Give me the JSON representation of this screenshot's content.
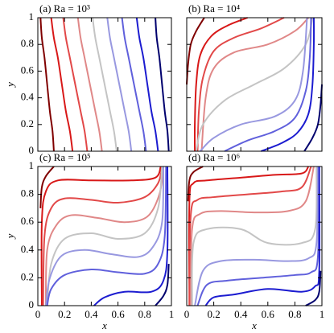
{
  "chart_data": [
    {
      "type": "line",
      "title": "(a) Ra = 10³",
      "ylabel": "y",
      "xlim": [
        0,
        1
      ],
      "ylim": [
        0,
        1
      ],
      "xticks": [
        0,
        0.2,
        0.4,
        0.6,
        0.8,
        1
      ],
      "yticks": [
        0,
        0.2,
        0.4,
        0.6,
        0.8,
        1
      ],
      "xticklabels": false,
      "yticklabels": true,
      "series": [
        {
          "color": "#800000",
          "x": [
            0.12,
            0.11,
            0.09,
            0.07,
            0.05,
            0.03,
            0.02
          ],
          "values": [
            0,
            0.15,
            0.3,
            0.5,
            0.7,
            0.85,
            1
          ]
        },
        {
          "color": "#d81818",
          "x": [
            0.26,
            0.24,
            0.21,
            0.18,
            0.15,
            0.12,
            0.1
          ],
          "values": [
            0,
            0.15,
            0.3,
            0.5,
            0.7,
            0.85,
            1
          ]
        },
        {
          "color": "#e24848",
          "x": [
            0.37,
            0.35,
            0.32,
            0.28,
            0.24,
            0.21,
            0.19
          ],
          "values": [
            0,
            0.15,
            0.3,
            0.5,
            0.7,
            0.85,
            1
          ]
        },
        {
          "color": "#e08888",
          "x": [
            0.48,
            0.46,
            0.43,
            0.39,
            0.35,
            0.32,
            0.3
          ],
          "values": [
            0,
            0.15,
            0.3,
            0.5,
            0.7,
            0.85,
            1
          ]
        },
        {
          "color": "#c4c4c4",
          "x": [
            0.59,
            0.57,
            0.54,
            0.5,
            0.46,
            0.43,
            0.41
          ],
          "values": [
            0,
            0.15,
            0.3,
            0.5,
            0.7,
            0.85,
            1
          ]
        },
        {
          "color": "#9898e0",
          "x": [
            0.7,
            0.68,
            0.65,
            0.61,
            0.57,
            0.54,
            0.52
          ],
          "values": [
            0,
            0.15,
            0.3,
            0.5,
            0.7,
            0.85,
            1
          ]
        },
        {
          "color": "#6060dc",
          "x": [
            0.81,
            0.79,
            0.76,
            0.72,
            0.68,
            0.65,
            0.63
          ],
          "values": [
            0,
            0.15,
            0.3,
            0.5,
            0.7,
            0.85,
            1
          ]
        },
        {
          "color": "#1c1cd0",
          "x": [
            0.9,
            0.88,
            0.85,
            0.82,
            0.79,
            0.76,
            0.74
          ],
          "values": [
            0,
            0.15,
            0.3,
            0.5,
            0.7,
            0.85,
            1
          ]
        },
        {
          "color": "#00006e",
          "x": [
            0.98,
            0.97,
            0.95,
            0.93,
            0.91,
            0.89,
            0.88
          ],
          "values": [
            0,
            0.15,
            0.3,
            0.5,
            0.7,
            0.85,
            1
          ]
        }
      ]
    },
    {
      "type": "line",
      "title": "(b) Ra = 10⁴",
      "xlim": [
        0,
        1
      ],
      "ylim": [
        0,
        1
      ],
      "xticks": [
        0,
        0.2,
        0.4,
        0.6,
        0.8,
        1
      ],
      "yticks": [
        0,
        0.2,
        0.4,
        0.6,
        0.8,
        1
      ],
      "xticklabels": false,
      "yticklabels": false,
      "series": [
        {
          "color": "#800000",
          "x": [
            0.13,
            0.07,
            0.03,
            0.01,
            0
          ],
          "values": [
            1,
            0.9,
            0.8,
            0.65,
            0.5
          ]
        },
        {
          "color": "#d81818",
          "x": [
            0.45,
            0.3,
            0.18,
            0.1,
            0.07,
            0.06,
            0.06
          ],
          "values": [
            1,
            0.94,
            0.86,
            0.72,
            0.5,
            0.2,
            0
          ]
        },
        {
          "color": "#e24848",
          "x": [
            0.72,
            0.55,
            0.35,
            0.2,
            0.12,
            0.09,
            0.08
          ],
          "values": [
            1,
            0.92,
            0.85,
            0.75,
            0.55,
            0.3,
            0
          ]
        },
        {
          "color": "#e08888",
          "x": [
            0.9,
            0.8,
            0.6,
            0.35,
            0.2,
            0.14,
            0.11
          ],
          "values": [
            1,
            0.9,
            0.8,
            0.74,
            0.62,
            0.4,
            0
          ]
        },
        {
          "color": "#c4c4c4",
          "x": [
            0.93,
            0.88,
            0.72,
            0.5,
            0.28,
            0.12,
            0.07
          ],
          "values": [
            1,
            0.8,
            0.62,
            0.5,
            0.38,
            0.2,
            0
          ]
        },
        {
          "color": "#9898e0",
          "x": [
            0.89,
            0.86,
            0.8,
            0.65,
            0.4,
            0.2,
            0.1
          ],
          "values": [
            1,
            0.6,
            0.38,
            0.26,
            0.2,
            0.1,
            0
          ]
        },
        {
          "color": "#6060dc",
          "x": [
            0.92,
            0.91,
            0.88,
            0.8,
            0.65,
            0.45,
            0.28
          ],
          "values": [
            1,
            0.7,
            0.45,
            0.25,
            0.15,
            0.08,
            0
          ]
        },
        {
          "color": "#1c1cd0",
          "x": [
            0.94,
            0.94,
            0.93,
            0.9,
            0.82,
            0.7,
            0.55
          ],
          "values": [
            1,
            0.8,
            0.5,
            0.28,
            0.14,
            0.06,
            0
          ]
        },
        {
          "color": "#00006e",
          "x": [
            1,
            0.99,
            0.97,
            0.93,
            0.87
          ],
          "values": [
            0.5,
            0.35,
            0.2,
            0.1,
            0
          ]
        }
      ]
    },
    {
      "type": "line",
      "title": "(c) Ra = 10⁵",
      "xlabel": "x",
      "ylabel": "y",
      "xlim": [
        0,
        1
      ],
      "ylim": [
        0,
        1
      ],
      "xticks": [
        0,
        0.2,
        0.4,
        0.6,
        0.8,
        1
      ],
      "yticks": [
        0,
        0.2,
        0.4,
        0.6,
        0.8,
        1
      ],
      "xticklabels": true,
      "yticklabels": true,
      "series": [
        {
          "color": "#800000",
          "x": [
            0.02,
            0.03,
            0.06,
            0.12
          ],
          "values": [
            0.7,
            0.85,
            0.93,
            1
          ]
        },
        {
          "color": "#d81818",
          "x": [
            0.03,
            0.03,
            0.06,
            0.15,
            0.4,
            0.7,
            0.88,
            0.92
          ],
          "values": [
            0,
            0.6,
            0.82,
            0.9,
            0.9,
            0.9,
            0.92,
            1
          ]
        },
        {
          "color": "#e24848",
          "x": [
            0.04,
            0.05,
            0.1,
            0.2,
            0.4,
            0.6,
            0.8,
            0.9,
            0.93
          ],
          "values": [
            0,
            0.5,
            0.7,
            0.77,
            0.76,
            0.74,
            0.78,
            0.88,
            1
          ]
        },
        {
          "color": "#e08888",
          "x": [
            0.06,
            0.07,
            0.14,
            0.25,
            0.45,
            0.65,
            0.82,
            0.91,
            0.94
          ],
          "values": [
            0,
            0.4,
            0.58,
            0.65,
            0.63,
            0.6,
            0.64,
            0.8,
            1
          ]
        },
        {
          "color": "#c4c4c4",
          "x": [
            0.07,
            0.1,
            0.2,
            0.4,
            0.6,
            0.8,
            0.9,
            0.93
          ],
          "values": [
            0,
            0.3,
            0.48,
            0.52,
            0.48,
            0.52,
            0.7,
            1
          ]
        },
        {
          "color": "#9898e0",
          "x": [
            0.06,
            0.09,
            0.18,
            0.35,
            0.55,
            0.75,
            0.86,
            0.93,
            0.94
          ],
          "values": [
            0,
            0.2,
            0.36,
            0.4,
            0.37,
            0.35,
            0.42,
            0.6,
            1
          ]
        },
        {
          "color": "#6060dc",
          "x": [
            0.07,
            0.1,
            0.2,
            0.4,
            0.6,
            0.8,
            0.9,
            0.95,
            0.96
          ],
          "values": [
            0,
            0.12,
            0.22,
            0.26,
            0.24,
            0.23,
            0.3,
            0.5,
            1
          ]
        },
        {
          "color": "#1c1cd0",
          "x": [
            0.42,
            0.5,
            0.65,
            0.85,
            0.94,
            0.97,
            0.97
          ],
          "values": [
            0,
            0.06,
            0.1,
            0.1,
            0.18,
            0.4,
            1
          ]
        },
        {
          "color": "#00006e",
          "x": [
            0.88,
            0.94,
            0.97,
            0.98
          ],
          "values": [
            0,
            0.07,
            0.15,
            0.3
          ]
        }
      ]
    },
    {
      "type": "line",
      "title": "(d) Ra = 10⁶",
      "xlabel": "x",
      "xlim": [
        0,
        1
      ],
      "ylim": [
        0,
        1
      ],
      "xticks": [
        0,
        0.2,
        0.4,
        0.6,
        0.8,
        1
      ],
      "yticks": [
        0,
        0.2,
        0.4,
        0.6,
        0.8,
        1
      ],
      "xticklabels": true,
      "yticklabels": false,
      "series": [
        {
          "color": "#800000",
          "x": [
            0.01,
            0.02,
            0.05,
            0.12
          ],
          "values": [
            0.75,
            0.9,
            0.96,
            1
          ]
        },
        {
          "color": "#d81818",
          "x": [
            0.02,
            0.02,
            0.05,
            0.15,
            0.4,
            0.65,
            0.85,
            0.9
          ],
          "values": [
            0,
            0.75,
            0.88,
            0.9,
            0.92,
            0.94,
            0.95,
            1
          ]
        },
        {
          "color": "#e24848",
          "x": [
            0.02,
            0.03,
            0.08,
            0.2,
            0.45,
            0.7,
            0.85,
            0.92
          ],
          "values": [
            0,
            0.65,
            0.76,
            0.78,
            0.8,
            0.82,
            0.85,
            1
          ]
        },
        {
          "color": "#e08888",
          "x": [
            0.03,
            0.04,
            0.1,
            0.25,
            0.5,
            0.75,
            0.88,
            0.94
          ],
          "values": [
            0,
            0.55,
            0.66,
            0.68,
            0.67,
            0.68,
            0.75,
            1
          ]
        },
        {
          "color": "#c4c4c4",
          "x": [
            0.04,
            0.05,
            0.15,
            0.4,
            0.6,
            0.85,
            0.95,
            0.96
          ],
          "values": [
            0,
            0.45,
            0.55,
            0.55,
            0.45,
            0.45,
            0.55,
            1
          ]
        },
        {
          "color": "#9898e0",
          "x": [
            0.06,
            0.12,
            0.25,
            0.5,
            0.75,
            0.9,
            0.96,
            0.97
          ],
          "values": [
            0,
            0.25,
            0.32,
            0.33,
            0.32,
            0.34,
            0.45,
            1
          ]
        },
        {
          "color": "#6060dc",
          "x": [
            0.08,
            0.15,
            0.3,
            0.55,
            0.8,
            0.92,
            0.97,
            0.98
          ],
          "values": [
            0,
            0.15,
            0.18,
            0.2,
            0.22,
            0.24,
            0.35,
            1
          ]
        },
        {
          "color": "#1c1cd0",
          "x": [
            0.14,
            0.2,
            0.35,
            0.6,
            0.85,
            0.95,
            0.98,
            0.98
          ],
          "values": [
            0,
            0.06,
            0.08,
            0.12,
            0.1,
            0.14,
            0.25,
            1
          ]
        },
        {
          "color": "#00006e",
          "x": [
            0.88,
            0.95,
            0.98,
            0.99
          ],
          "values": [
            0,
            0.04,
            0.1,
            0.25
          ]
        }
      ]
    }
  ]
}
